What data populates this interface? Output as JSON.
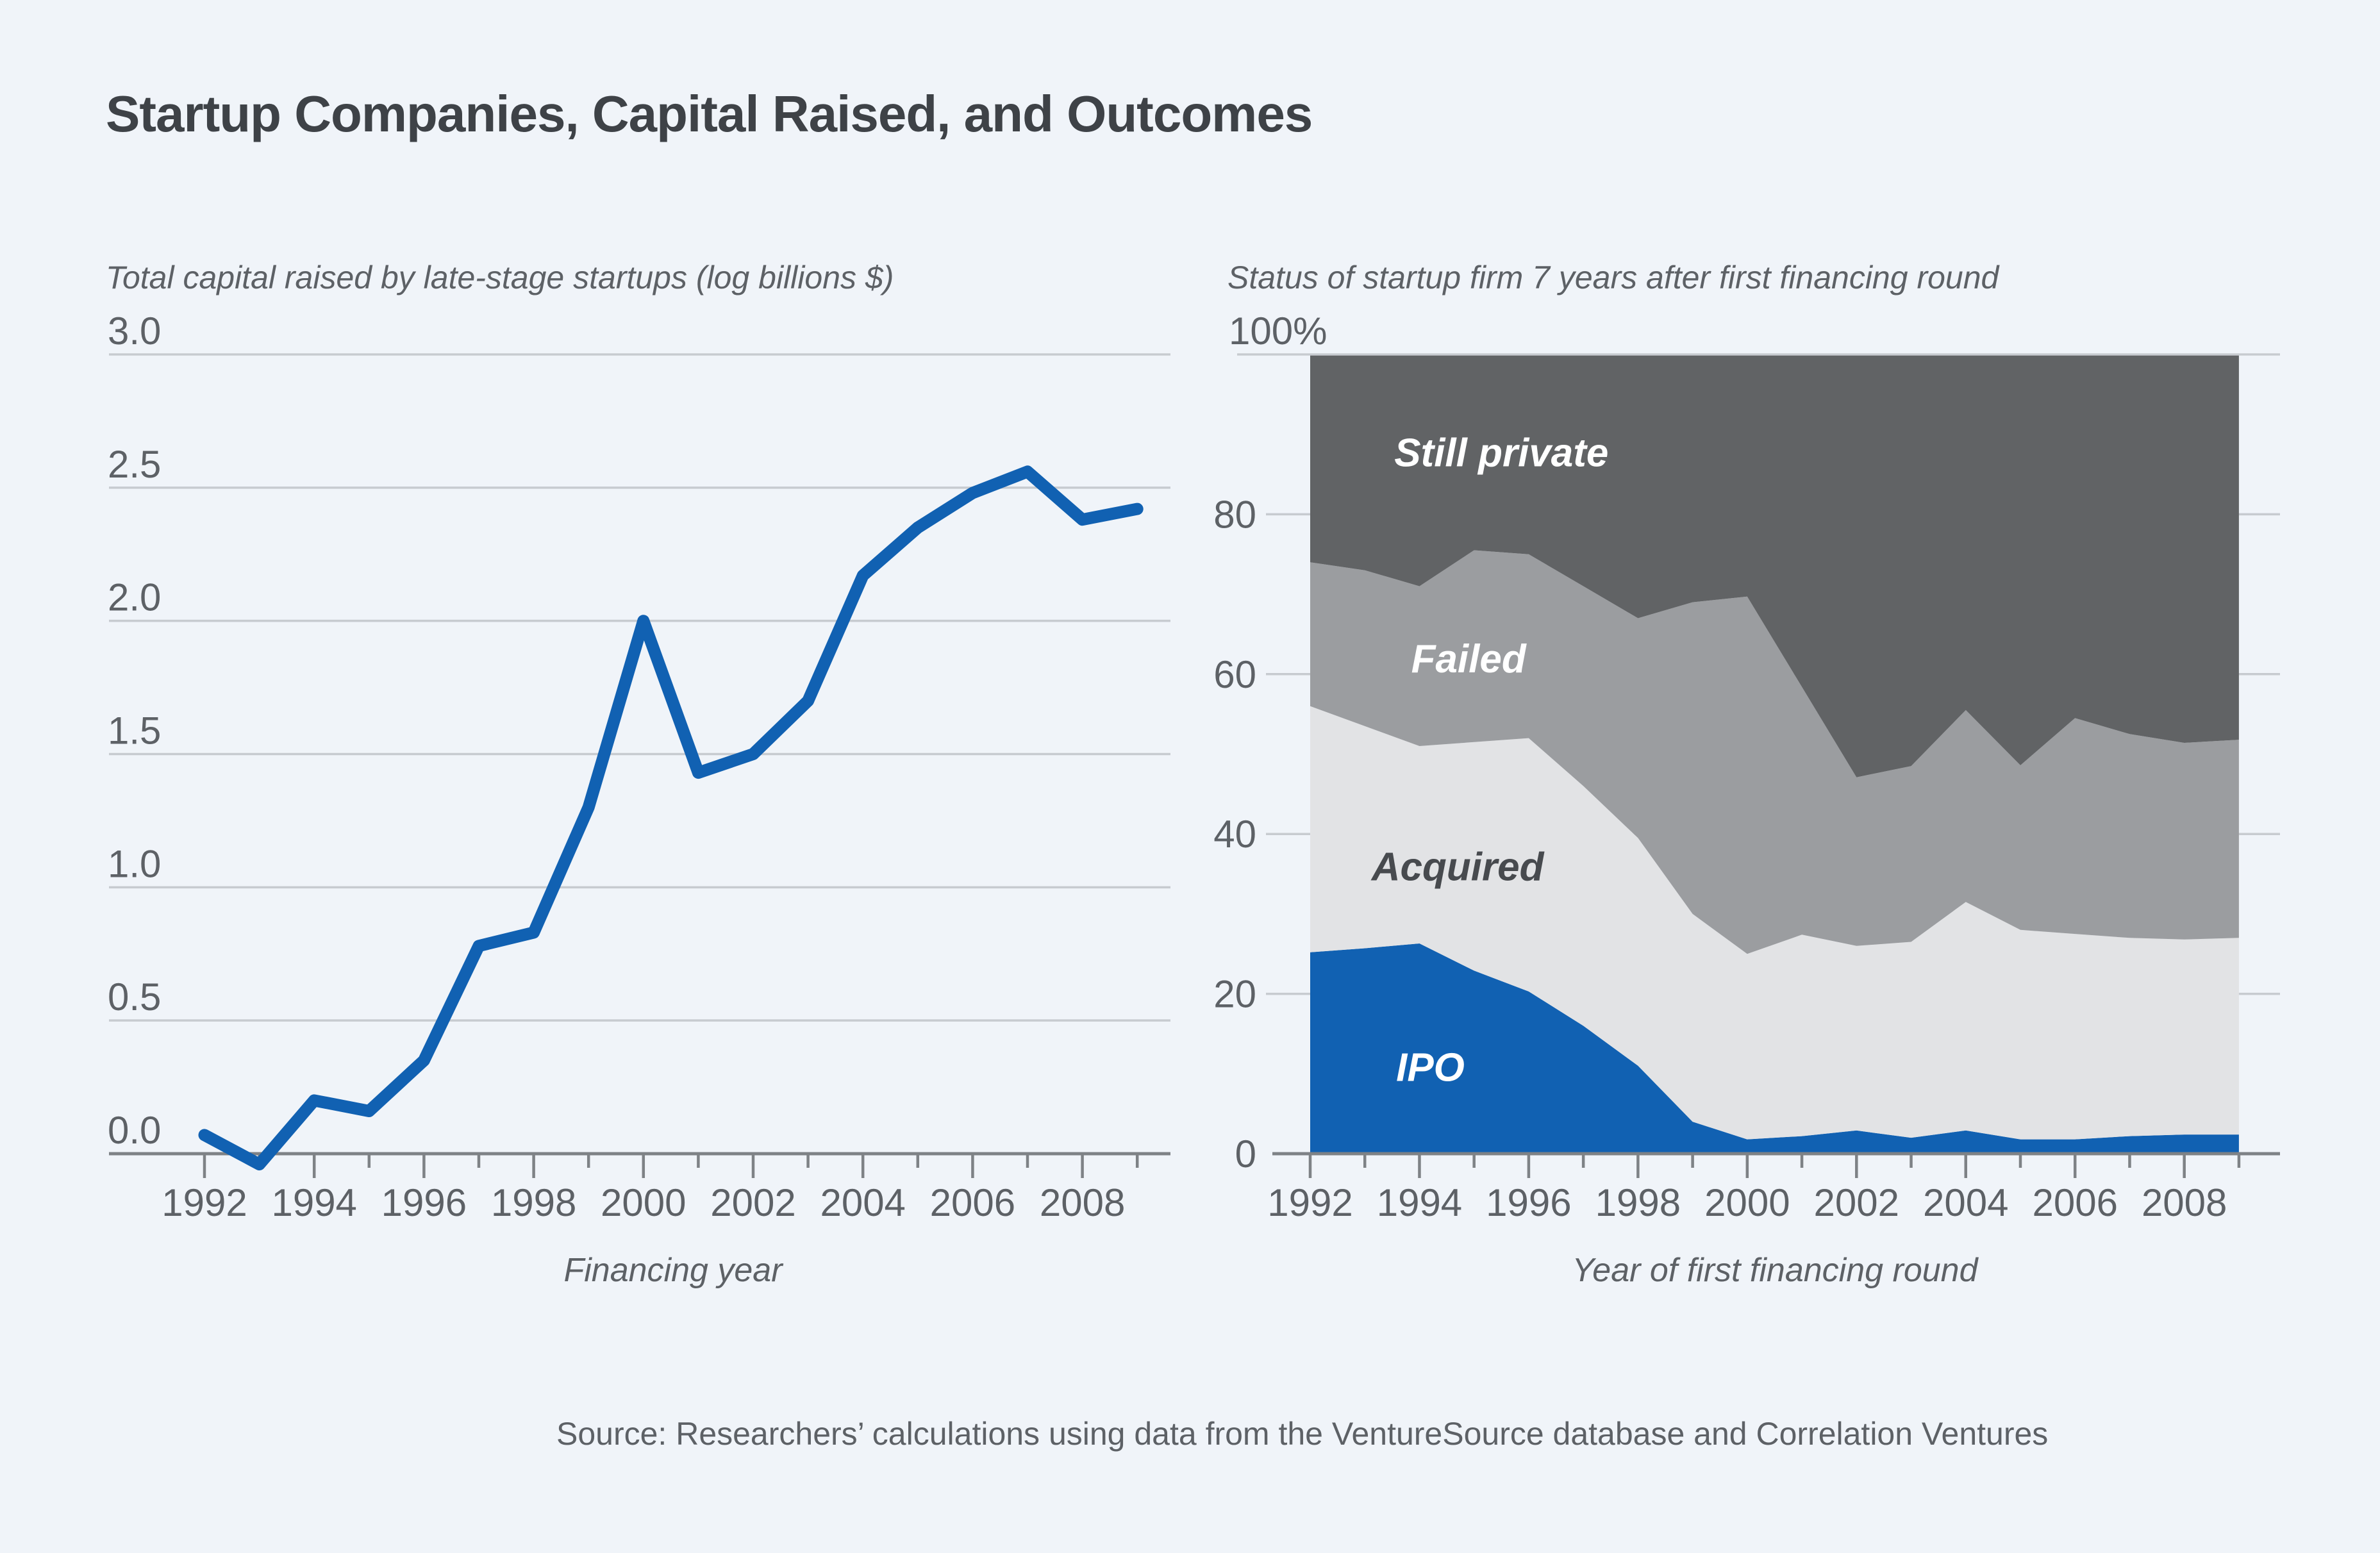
{
  "page": {
    "title": "Startup Companies, Capital Raised, and Outcomes",
    "source": "Source: Researchers’ calculations using data from the VentureSource database and Correlation Ventures",
    "background": "#f0f4f9",
    "title_color": "#3e4247",
    "text_color": "#5d6166",
    "gridline_color": "#c7cbd0",
    "axis_color": "#7e8286"
  },
  "chart_data": [
    {
      "type": "line",
      "title": "Total capital raised by late-stage startups (log billions $)",
      "xlabel": "Financing year",
      "ylabel": "",
      "x": [
        1992,
        1993,
        1994,
        1995,
        1996,
        1997,
        1998,
        1999,
        2000,
        2001,
        2002,
        2003,
        2004,
        2005,
        2006,
        2007,
        2008,
        2009
      ],
      "values": [
        0.07,
        -0.04,
        0.2,
        0.16,
        0.35,
        0.78,
        0.83,
        1.3,
        2.0,
        1.43,
        1.5,
        1.7,
        2.17,
        2.35,
        2.48,
        2.56,
        2.38,
        2.42
      ],
      "ylim": [
        0.0,
        3.0
      ],
      "y_ticks": [
        "0.0",
        "0.5",
        "1.0",
        "1.5",
        "2.0",
        "2.5",
        "3.0"
      ],
      "x_tick_labels": [
        "1992",
        "1994",
        "1996",
        "1998",
        "2000",
        "2002",
        "2004",
        "2006",
        "2008"
      ],
      "line_color": "#1161b2",
      "grid": true,
      "legend_position": "none"
    },
    {
      "type": "area",
      "title": "Status of startup firm 7 years after first financing round",
      "xlabel": "Year of first financing round",
      "ylabel": "",
      "x": [
        1992,
        1993,
        1994,
        1995,
        1996,
        1997,
        1998,
        1999,
        2000,
        2001,
        2002,
        2003,
        2004,
        2005,
        2006,
        2007,
        2008,
        2009
      ],
      "series": [
        {
          "name": "IPO",
          "color": "#1161b2",
          "values": [
            25.2,
            25.7,
            26.3,
            22.9,
            20.3,
            16.0,
            11.0,
            4.0,
            1.8,
            2.2,
            2.9,
            2.0,
            2.9,
            1.8,
            1.8,
            2.2,
            2.4,
            2.4
          ]
        },
        {
          "name": "Acquired",
          "color": "#e2e3e5",
          "values": [
            30.8,
            27.8,
            24.7,
            28.6,
            31.7,
            30.0,
            28.5,
            26.0,
            23.2,
            25.2,
            23.1,
            24.5,
            28.6,
            26.2,
            25.7,
            24.8,
            24.4,
            24.6
          ]
        },
        {
          "name": "Failed",
          "color": "#9b9da0",
          "values": [
            18.0,
            19.5,
            20.0,
            24.0,
            23.0,
            25.0,
            27.5,
            39.0,
            44.7,
            31.0,
            21.1,
            22.0,
            24.0,
            20.6,
            27.0,
            25.5,
            24.6,
            24.8
          ]
        },
        {
          "name": "Still private",
          "color": "#616365",
          "values": [
            26.0,
            27.0,
            29.0,
            24.5,
            25.0,
            29.0,
            33.0,
            31.0,
            30.3,
            41.6,
            52.9,
            51.5,
            44.5,
            51.4,
            45.5,
            47.5,
            48.6,
            48.2
          ]
        }
      ],
      "ylim": [
        0,
        100
      ],
      "y_ticks": [
        "0",
        "20",
        "40",
        "60",
        "80",
        "100%"
      ],
      "x_tick_labels": [
        "1992",
        "1994",
        "1996",
        "1998",
        "2000",
        "2002",
        "2004",
        "2006",
        "2008"
      ],
      "grid": true,
      "legend_position": "labels-inside",
      "annotations": [
        {
          "text": "Still private",
          "x": 1995.5,
          "y": 87.7,
          "color": "#ffffff"
        },
        {
          "text": "Failed",
          "x": 1994.9,
          "y": 61.9,
          "color": "#ffffff"
        },
        {
          "text": "Acquired",
          "x": 1994.7,
          "y": 35.9,
          "color": "#474a4e"
        },
        {
          "text": "IPO",
          "x": 1994.2,
          "y": 10.8,
          "color": "#ffffff"
        }
      ]
    }
  ]
}
